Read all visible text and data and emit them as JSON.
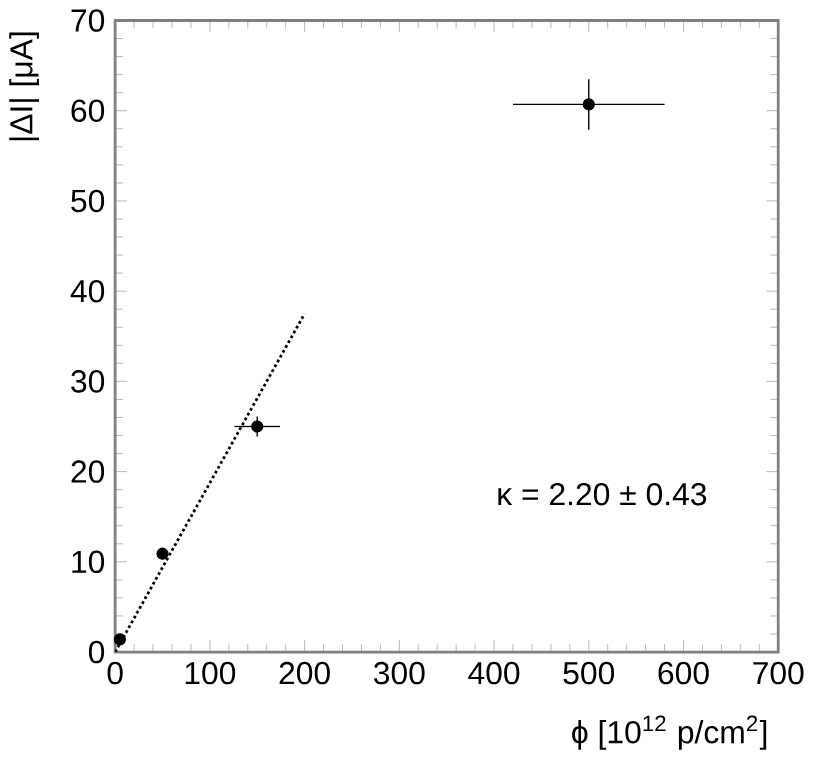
{
  "chart_data": {
    "type": "scatter",
    "xlabel": "ϕ [10$^{12}$ p/cm$^{2}$]",
    "ylabel": "|ΔI| [μA]",
    "xlim": [
      0,
      700
    ],
    "ylim": [
      0,
      70
    ],
    "xticks": [
      0,
      100,
      200,
      300,
      400,
      500,
      600,
      700
    ],
    "yticks": [
      0,
      10,
      20,
      30,
      40,
      50,
      60,
      70
    ],
    "grid": false,
    "series": [
      {
        "color": "#000000",
        "marker": "circle",
        "x": [
          5,
          50,
          150,
          500
        ],
        "values": [
          1.4,
          10.9,
          25.0,
          60.7
        ],
        "errors": [
          null,
          0.5,
          1.1,
          2.8
        ],
        "xerrors": [
          null,
          6,
          24,
          80
        ]
      },
      {
        "type": "line",
        "color": "#000000",
        "line_style": "dotted",
        "marker": "none",
        "x": [
          0,
          200
        ],
        "values": [
          0,
          37.5
        ]
      }
    ],
    "annotations": [
      {
        "text": "κ = 2.20 ± 0.43"
      }
    ]
  }
}
